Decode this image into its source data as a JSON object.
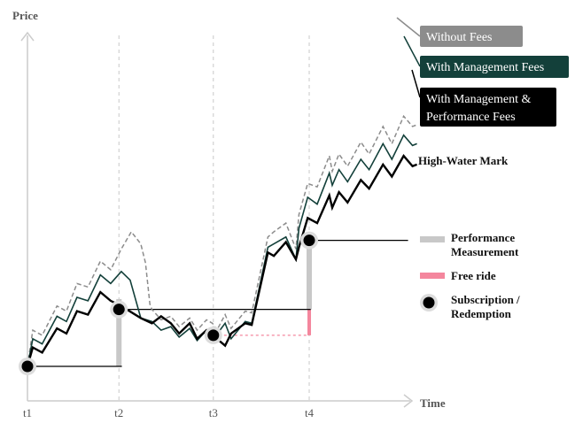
{
  "chart_data": {
    "type": "line",
    "title": "",
    "ylabel": "Price",
    "xlabel": "Time",
    "x_ticks": [
      "t1",
      "t2",
      "t3",
      "t4"
    ],
    "series": [
      {
        "name": "Without Fees",
        "color": "#8c8c8c",
        "dash": true,
        "values": [
          [
            0,
            1.0
          ],
          [
            0.18,
            3.1
          ],
          [
            0.5,
            2.8
          ],
          [
            1.0,
            4.5
          ],
          [
            1.32,
            4.2
          ],
          [
            1.68,
            5.8
          ],
          [
            2.05,
            5.6
          ],
          [
            2.47,
            7.1
          ],
          [
            2.82,
            6.6
          ],
          [
            3.18,
            7.8
          ],
          [
            3.52,
            8.8
          ],
          [
            3.84,
            8.1
          ],
          [
            4.0,
            7.0
          ],
          [
            4.15,
            4.6
          ],
          [
            4.22,
            4.3
          ],
          [
            4.53,
            3.7
          ],
          [
            4.86,
            3.9
          ],
          [
            5.14,
            3.3
          ],
          [
            5.5,
            3.8
          ],
          [
            5.75,
            3.1
          ],
          [
            6.07,
            3.7
          ],
          [
            6.27,
            3.5
          ],
          [
            6.35,
            3.3
          ],
          [
            6.42,
            3.1
          ],
          [
            6.7,
            4.0
          ],
          [
            6.9,
            3.2
          ],
          [
            7.38,
            4.2
          ],
          [
            7.6,
            4.1
          ],
          [
            8.15,
            8.5
          ],
          [
            8.35,
            8.8
          ],
          [
            8.76,
            9.3
          ],
          [
            9.1,
            7.8
          ],
          [
            9.2,
            9.8
          ],
          [
            9.5,
            11.6
          ],
          [
            9.82,
            11.4
          ],
          [
            10.23,
            13.2
          ],
          [
            10.33,
            12.3
          ],
          [
            10.56,
            13.3
          ],
          [
            10.85,
            12.6
          ],
          [
            11.3,
            14.0
          ],
          [
            11.58,
            13.3
          ],
          [
            12.05,
            14.9
          ],
          [
            12.35,
            13.9
          ],
          [
            12.75,
            15.5
          ],
          [
            13.05,
            14.9
          ],
          [
            13.2,
            15.0
          ]
        ]
      },
      {
        "name": "With Management Fees",
        "color": "#13403a",
        "dash": false,
        "values": [
          [
            0,
            1.0
          ],
          [
            0.18,
            2.6
          ],
          [
            0.5,
            2.3
          ],
          [
            1.0,
            3.9
          ],
          [
            1.32,
            3.6
          ],
          [
            1.68,
            5.0
          ],
          [
            2.05,
            4.8
          ],
          [
            2.47,
            6.3
          ],
          [
            2.82,
            5.8
          ],
          [
            3.18,
            6.5
          ],
          [
            3.48,
            6.0
          ],
          [
            3.84,
            3.8
          ],
          [
            4.22,
            3.6
          ],
          [
            4.53,
            3.1
          ],
          [
            4.86,
            3.3
          ],
          [
            5.14,
            2.7
          ],
          [
            5.5,
            3.2
          ],
          [
            5.75,
            2.5
          ],
          [
            6.07,
            3.1
          ],
          [
            6.35,
            2.7
          ],
          [
            6.7,
            3.5
          ],
          [
            6.9,
            2.6
          ],
          [
            7.38,
            3.6
          ],
          [
            7.6,
            3.5
          ],
          [
            8.15,
            7.9
          ],
          [
            8.35,
            8.1
          ],
          [
            8.76,
            8.5
          ],
          [
            9.1,
            7.2
          ],
          [
            9.2,
            9.0
          ],
          [
            9.5,
            10.8
          ],
          [
            9.82,
            10.4
          ],
          [
            10.23,
            12.2
          ],
          [
            10.33,
            11.5
          ],
          [
            10.56,
            12.4
          ],
          [
            10.85,
            11.7
          ],
          [
            11.3,
            13.0
          ],
          [
            11.58,
            12.4
          ],
          [
            12.05,
            13.9
          ],
          [
            12.35,
            13.0
          ],
          [
            12.75,
            14.4
          ],
          [
            13.05,
            13.8
          ],
          [
            13.2,
            13.9
          ]
        ]
      },
      {
        "name": "With Management & Performance Fees",
        "color": "#000000",
        "dash": false,
        "values": [
          [
            0,
            1.0
          ],
          [
            0.18,
            2.1
          ],
          [
            0.5,
            1.8
          ],
          [
            1.0,
            3.2
          ],
          [
            1.32,
            2.9
          ],
          [
            1.68,
            4.2
          ],
          [
            2.05,
            4.0
          ],
          [
            2.47,
            5.3
          ],
          [
            2.82,
            4.8
          ],
          [
            3.18,
            4.5
          ],
          [
            3.84,
            3.8
          ],
          [
            4.22,
            3.5
          ],
          [
            4.53,
            3.9
          ],
          [
            4.86,
            3.5
          ],
          [
            5.14,
            2.9
          ],
          [
            5.5,
            3.5
          ],
          [
            5.75,
            2.6
          ],
          [
            6.07,
            3.1
          ],
          [
            6.42,
            2.6
          ],
          [
            6.7,
            2.2
          ],
          [
            6.9,
            2.9
          ],
          [
            7.38,
            3.5
          ],
          [
            7.6,
            3.4
          ],
          [
            8.15,
            7.6
          ],
          [
            8.35,
            7.4
          ],
          [
            8.76,
            8.2
          ],
          [
            9.1,
            7.2
          ],
          [
            9.2,
            7.9
          ],
          [
            9.5,
            9.6
          ],
          [
            9.82,
            9.3
          ],
          [
            10.23,
            10.9
          ],
          [
            10.33,
            10.2
          ],
          [
            10.56,
            11.1
          ],
          [
            10.85,
            10.5
          ],
          [
            11.3,
            11.8
          ],
          [
            11.58,
            11.3
          ],
          [
            12.05,
            12.7
          ],
          [
            12.35,
            12.0
          ],
          [
            12.75,
            13.2
          ],
          [
            13.05,
            12.6
          ],
          [
            13.2,
            12.7
          ]
        ]
      }
    ],
    "events": [
      {
        "x": 0,
        "y": 1.0
      },
      {
        "x": 3.1,
        "y": 4.3
      },
      {
        "x": 6.3,
        "y": 2.8
      },
      {
        "x": 9.55,
        "y": 8.3
      }
    ],
    "high_water_mark_y": 8.3,
    "performance_measurement": [
      {
        "x": 3.1,
        "y_from": 1.0,
        "y_to": 4.9
      },
      {
        "x": 9.55,
        "y_from": 4.3,
        "y_to": 8.3
      }
    ],
    "free_ride": {
      "x": 9.55,
      "y_from": 2.8,
      "y_to": 4.3
    },
    "reference_lines": [
      {
        "x_from": 0,
        "x_to": 3.2,
        "y": 1.0,
        "style": "solid"
      },
      {
        "x_from": 3.1,
        "x_to": 9.6,
        "y": 4.3,
        "style": "solid"
      },
      {
        "x_from": 6.3,
        "x_to": 9.55,
        "y": 2.8,
        "style": "dotted-pink"
      },
      {
        "x_from": 9.55,
        "x_to": 12.9,
        "y": 8.3,
        "style": "solid"
      }
    ],
    "labels": {
      "high_water_mark": "High-Water Mark",
      "without_fees": "Without Fees",
      "with_mgmt": "With Management Fees",
      "with_mgmt_perf": [
        "With Management &",
        "Performance Fees"
      ]
    },
    "legend": {
      "performance_measurement": [
        "Performance",
        "Measurement"
      ],
      "free_ride": "Free ride",
      "subscription": [
        "Subscription /",
        "Redemption"
      ]
    },
    "colors": {
      "performance_bar": "#c8c8c8",
      "free_ride": "#f4869d",
      "axis": "#cccccc",
      "guide": "#c8c8c8"
    },
    "grid": false
  }
}
